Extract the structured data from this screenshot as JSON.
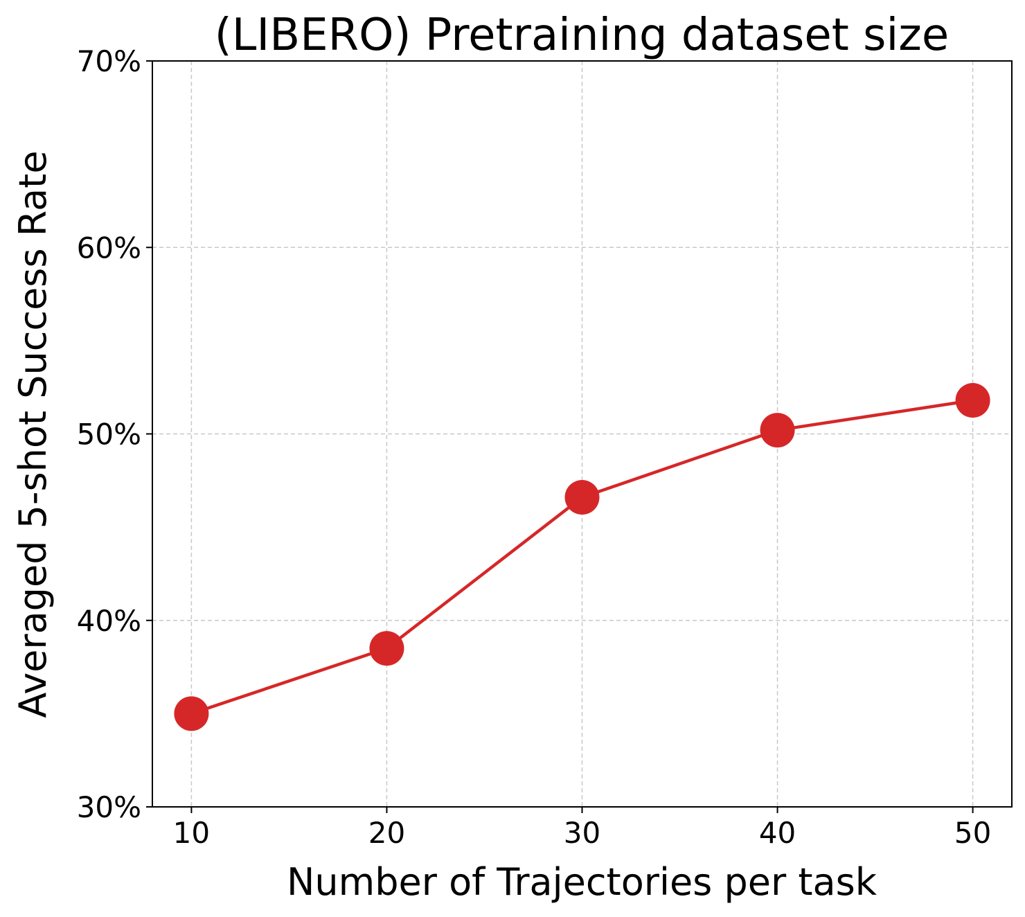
{
  "chart_data": {
    "type": "line",
    "title": "(LIBERO) Pretraining dataset size",
    "xlabel": "Number of Trajectories per task",
    "ylabel": "Averaged 5-shot Success Rate",
    "x": [
      10,
      20,
      30,
      40,
      50
    ],
    "series": [
      {
        "values": [
          35.0,
          38.5,
          46.6,
          50.2,
          51.8
        ]
      }
    ],
    "xlim": [
      8,
      52
    ],
    "ylim": [
      30,
      70
    ],
    "xticks": [
      10,
      20,
      30,
      40,
      50
    ],
    "xtick_labels": [
      "10",
      "20",
      "30",
      "40",
      "50"
    ],
    "yticks": [
      30,
      40,
      50,
      60,
      70
    ],
    "ytick_labels": [
      "30%",
      "40%",
      "50%",
      "60%",
      "70%"
    ],
    "grid": true,
    "grid_style": "dashed",
    "legend": "none",
    "colors": {
      "series": "#d62728",
      "grid": "#c8c8c8",
      "axes": "#000000"
    }
  }
}
